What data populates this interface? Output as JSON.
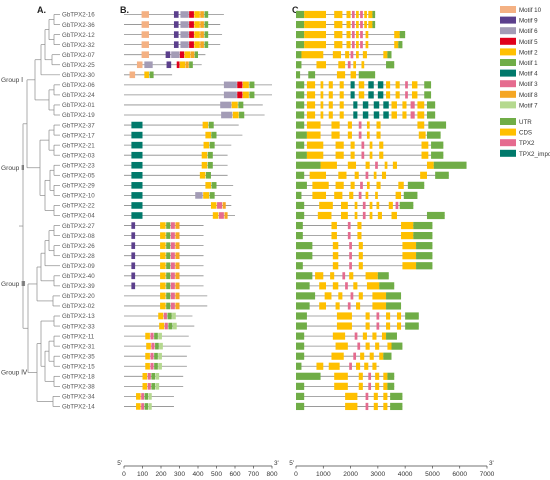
{
  "panels": {
    "a": "A.",
    "b": "B.",
    "c": "C."
  },
  "genes": [
    "GbTPX2-16",
    "GbTPX2-36",
    "GbTPX2-12",
    "GbTPX2-32",
    "GbTPX2-07",
    "GbTPX2-25",
    "GbTPX2-30",
    "GbTPX2-06",
    "GbTPX2-24",
    "GbTPX2-01",
    "GbTPX2-19",
    "GbTPX2-37",
    "GbTPX2-17",
    "GbTPX2-21",
    "GbTPX2-03",
    "GbTPX2-23",
    "GbTPX2-05",
    "GbTPX2-29",
    "GbTPX2-10",
    "GbTPX2-22",
    "GbTPX2-04",
    "GbTPX2-27",
    "GbTPX2-08",
    "GbTPX2-26",
    "GbTPX2-28",
    "GbTPX2-09",
    "GbTPX2-40",
    "GbTPX2-39",
    "GbTPX2-20",
    "GbTPX2-02",
    "GbTPX2-13",
    "GbTPX2-33",
    "GbTPX2-11",
    "GbTPX2-31",
    "GbTPX2-35",
    "GbTPX2-15",
    "GbTPX2-18",
    "GbTPX2-38",
    "GbTPX2-34",
    "GbTPX2-14"
  ],
  "groups": [
    {
      "label": "Group Ⅰ",
      "first": 0,
      "last": 10
    },
    {
      "label": "Group Ⅱ",
      "first": 11,
      "last": 20
    },
    {
      "label": "Group Ⅲ",
      "first": 21,
      "last": 29
    },
    {
      "label": "Group Ⅳ",
      "first": 30,
      "last": 39
    }
  ],
  "motif_legend": [
    {
      "label": "Motif 10",
      "color": "#f4b183"
    },
    {
      "label": "Motif 9",
      "color": "#5b3f8c"
    },
    {
      "label": "Motif 6",
      "color": "#a39cb6"
    },
    {
      "label": "Motif 5",
      "color": "#e0001b"
    },
    {
      "label": "Motif 2",
      "color": "#ffc000"
    },
    {
      "label": "Motif 1",
      "color": "#70ad47"
    },
    {
      "label": "Motif 4",
      "color": "#00796b"
    },
    {
      "label": "Motif 3",
      "color": "#e56b8f"
    },
    {
      "label": "Motif 8",
      "color": "#f5a623"
    },
    {
      "label": "Motif 7",
      "color": "#b5d98f"
    }
  ],
  "structure_legend": [
    {
      "label": "UTR",
      "color": "#70ad47"
    },
    {
      "label": "CDS",
      "color": "#ffc000"
    },
    {
      "label": "TPX2",
      "color": "#e56b8f"
    },
    {
      "label": "TPX2_importin",
      "color": "#00796b"
    }
  ],
  "motif_axis": {
    "ticks": [
      "0",
      "100",
      "200",
      "300",
      "400",
      "500",
      "600",
      "700",
      "800"
    ],
    "start_label": "5'",
    "end_label": "3'",
    "max": 800
  },
  "structure_axis": {
    "ticks": [
      "0",
      "1000",
      "2000",
      "3000",
      "4000",
      "5000",
      "6000",
      "7000"
    ],
    "start_label": "5'",
    "end_label": "3'",
    "max": 7000
  }
}
